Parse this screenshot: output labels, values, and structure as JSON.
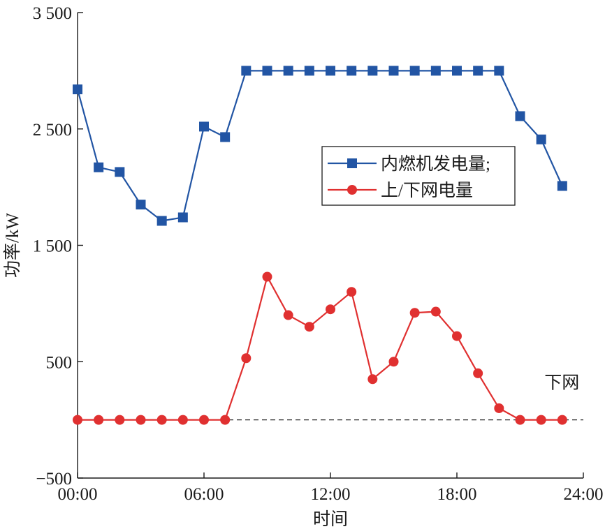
{
  "chart_data": {
    "type": "line",
    "title": "",
    "xlabel": "时间",
    "ylabel": "功率/kW",
    "xlim": [
      0,
      24
    ],
    "ylim": [
      -500,
      3500
    ],
    "xticks": [
      0,
      6,
      12,
      18,
      24
    ],
    "xtick_labels": [
      "00:00",
      "06:00",
      "12:00",
      "18:00",
      "24:00"
    ],
    "yticks": [
      -500,
      500,
      1500,
      2500,
      3500
    ],
    "ytick_labels": [
      "−500",
      "500",
      "1 500",
      "2 500",
      "3 500"
    ],
    "x": [
      0,
      1,
      2,
      3,
      4,
      5,
      6,
      7,
      8,
      9,
      10,
      11,
      12,
      13,
      14,
      15,
      16,
      17,
      18,
      19,
      20,
      21,
      22,
      23
    ],
    "series": [
      {
        "name": "内燃机发电量;",
        "color": "#2255a4",
        "marker": "square",
        "values": [
          2840,
          2170,
          2130,
          1850,
          1710,
          1740,
          2520,
          2430,
          3000,
          3000,
          3000,
          3000,
          3000,
          3000,
          3000,
          3000,
          3000,
          3000,
          3000,
          3000,
          3000,
          2610,
          2410,
          2010
        ]
      },
      {
        "name": "上/下网电量",
        "color": "#e03030",
        "marker": "circle",
        "values": [
          0,
          0,
          0,
          0,
          0,
          0,
          0,
          0,
          530,
          1230,
          900,
          800,
          950,
          1100,
          350,
          500,
          920,
          930,
          720,
          400,
          100,
          0,
          0,
          0
        ]
      }
    ],
    "reference_line": {
      "y": 0,
      "style": "dashed",
      "color": "#222222"
    },
    "annotations": [
      {
        "text": "下网",
        "x": 22.15,
        "y": 270
      }
    ],
    "legend_position": "center-right",
    "grid": false
  }
}
